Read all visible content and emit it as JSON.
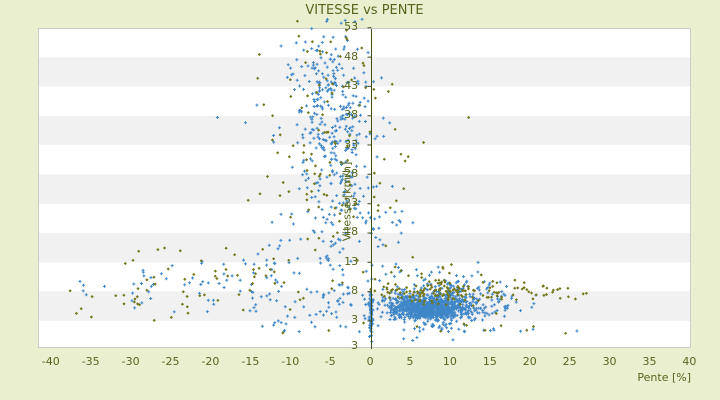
{
  "chart_data": {
    "type": "scatter",
    "title": "VITESSE vs PENTE",
    "xlabel": "Pente [%]",
    "ylabel": "Vitesse [km/h]",
    "xlim": [
      -41.6,
      40.2
    ],
    "ylim": [
      -1.8,
      52.8
    ],
    "x_ticks": [
      -40,
      -35,
      -30,
      -25,
      -20,
      -15,
      -10,
      -5,
      0,
      5,
      10,
      15,
      20,
      25,
      30,
      35,
      40
    ],
    "y_ticks": [
      53,
      48,
      43,
      38,
      33,
      28,
      23,
      18,
      13,
      8,
      3
    ],
    "y_axis_extra_bottom_label": "3",
    "grid": {
      "horizontal_bands": true,
      "band_step": 5,
      "legend": "none",
      "y_axis_drawn_at_x": 0
    },
    "colors": {
      "page_background": "#eaefd0",
      "plot_background": "#ffffff",
      "band": "#f1f1f1",
      "plot_border": "#cccccc",
      "axis_line": "#3f4d18",
      "text": "#55661c",
      "series_blue": "#3e86c8",
      "series_olive": "#75771d"
    },
    "series": [
      {
        "name": "vitesse-pente-bleu",
        "marker": "plus",
        "color": "#3e86c8",
        "clusters": [
          {
            "n": 780,
            "dist": "g",
            "cx": 7.4,
            "cy": 5.2,
            "sx": 2.3,
            "sy": 1.0
          },
          {
            "n": 200,
            "dist": "g",
            "cx": 7.0,
            "cy": 5.8,
            "sx": 4.3,
            "sy": 2.0
          },
          {
            "n": 120,
            "dist": "g",
            "cx": 10.5,
            "cy": 7.0,
            "sx": 3.2,
            "sy": 1.4
          },
          {
            "n": 280,
            "dist": "g",
            "cx": -4.8,
            "cy": 39,
            "sx": 2.5,
            "sy": 7.5
          },
          {
            "n": 80,
            "dist": "g",
            "cx": -4.2,
            "cy": 24,
            "sx": 3.4,
            "sy": 4.5
          },
          {
            "n": 28,
            "dist": "g",
            "cx": -7.5,
            "cy": 44,
            "sx": 4.0,
            "sy": 4.5
          },
          {
            "n": 45,
            "dist": "u",
            "x0": -30,
            "x1": -14,
            "y0": 4.5,
            "y1": 13.5
          },
          {
            "n": 75,
            "dist": "u",
            "x0": -15,
            "x1": -2.5,
            "y0": 3.5,
            "y1": 17
          },
          {
            "n": 30,
            "dist": "u",
            "x0": -3,
            "x1": 6,
            "y0": 9,
            "y1": 22
          },
          {
            "n": 14,
            "dist": "u",
            "x0": 3,
            "x1": 14,
            "y0": 9.5,
            "y1": 13
          },
          {
            "n": 70,
            "dist": "g",
            "cx": 0,
            "cy": 4,
            "sx": 0.12,
            "sy": 2.0
          },
          {
            "n": 26,
            "dist": "u",
            "x0": -14,
            "x1": 12,
            "y0": 0.8,
            "y1": 3
          },
          {
            "n": 18,
            "dist": "u",
            "x0": 13,
            "x1": 21,
            "y0": 3.5,
            "y1": 7.5
          },
          {
            "n": 7,
            "dist": "u",
            "x0": 12,
            "x1": 30,
            "y0": 0.8,
            "y1": 1.7
          },
          {
            "n": 6,
            "dist": "u",
            "x0": -37,
            "x1": -29,
            "y0": 7,
            "y1": 11
          }
        ]
      },
      {
        "name": "vitesse-pente-olive",
        "marker": "diamond",
        "color": "#75771d",
        "clusters": [
          {
            "n": 130,
            "dist": "g",
            "cx": 8.5,
            "cy": 7.9,
            "sx": 4.2,
            "sy": 1.2
          },
          {
            "n": 32,
            "dist": "u",
            "x0": 12,
            "x1": 27,
            "y0": 6.3,
            "y1": 9.2
          },
          {
            "n": 75,
            "dist": "g",
            "cx": -5.5,
            "cy": 38.5,
            "sx": 4.5,
            "sy": 8.5
          },
          {
            "n": 35,
            "dist": "g",
            "cx": -4,
            "cy": 24,
            "sx": 5.5,
            "sy": 4.5
          },
          {
            "n": 58,
            "dist": "u",
            "x0": -31,
            "x1": -4,
            "y0": 3.5,
            "y1": 15.5
          },
          {
            "n": 10,
            "dist": "u",
            "x0": -38,
            "x1": -27,
            "y0": 3,
            "y1": 10
          },
          {
            "n": 12,
            "dist": "u",
            "x0": -12,
            "x1": 30,
            "y0": 0.8,
            "y1": 3
          },
          {
            "n": 16,
            "dist": "u",
            "x0": -2,
            "x1": 12,
            "y0": 9,
            "y1": 14.5
          },
          {
            "n": 6,
            "dist": "u",
            "x0": -10,
            "x1": -2,
            "y0": 48,
            "y1": 53
          }
        ]
      }
    ]
  }
}
